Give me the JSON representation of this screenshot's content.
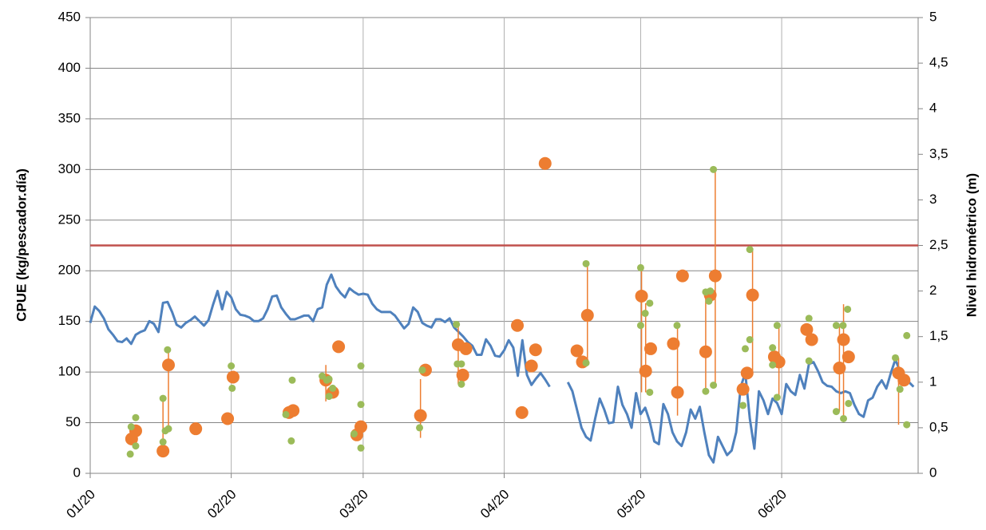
{
  "chart_data": {
    "type": "combo",
    "y_label": "CPUE (kg/pescador.día)",
    "y2_label": "Nivel hidrométrico (m)",
    "xlim": [
      0,
      182
    ],
    "xticks": [
      {
        "value": 0,
        "label": "01/20"
      },
      {
        "value": 31,
        "label": "02/20"
      },
      {
        "value": 60,
        "label": "03/20"
      },
      {
        "value": 91,
        "label": "04/20"
      },
      {
        "value": 121,
        "label": "05/20"
      },
      {
        "value": 152,
        "label": "06/20"
      }
    ],
    "ylim": [
      0,
      450
    ],
    "yticks": [
      0,
      50,
      100,
      150,
      200,
      250,
      300,
      350,
      400,
      450
    ],
    "y2lim": [
      0,
      5
    ],
    "y2ticks": [
      0,
      {
        "value": 0.5,
        "label": "0,5"
      },
      1,
      {
        "value": 1.5,
        "label": "1,5"
      },
      2,
      {
        "value": 2.5,
        "label": "2,5"
      },
      3,
      {
        "value": 3.5,
        "label": "3,5"
      },
      4,
      {
        "value": 4.5,
        "label": "4,5"
      },
      5
    ],
    "grid": true,
    "reference_line": {
      "axis": "y2",
      "value": 2.5,
      "color": "#c0504d"
    },
    "series": [
      {
        "type": "line",
        "axis": "y2",
        "color": "#4f81bd",
        "x": [
          0,
          1,
          2,
          3,
          4,
          5,
          6,
          7,
          8,
          9,
          10,
          11,
          12,
          13,
          14,
          15,
          16,
          17,
          18,
          19,
          20,
          21,
          22,
          23,
          24,
          25,
          26,
          27,
          28,
          29,
          30,
          31,
          32,
          33,
          34,
          35,
          36,
          37,
          38,
          39,
          40,
          41,
          42,
          43,
          44,
          45,
          46,
          47,
          48,
          49,
          50,
          51,
          52,
          53,
          54,
          55,
          56,
          57,
          58,
          59,
          60,
          61,
          62,
          63,
          64,
          65,
          66,
          67,
          68,
          69,
          70,
          71,
          72,
          73,
          74,
          75,
          76,
          77,
          78,
          79,
          80,
          81,
          82,
          83,
          84,
          85,
          86,
          87,
          88,
          89,
          90,
          91,
          92,
          93,
          94,
          95,
          96,
          97,
          98,
          99,
          100,
          101,
          102,
          103,
          104,
          105,
          106,
          107,
          108,
          109,
          110,
          111,
          112,
          113,
          114,
          115,
          116,
          117,
          118,
          119,
          120,
          121,
          122,
          123,
          124,
          125,
          126,
          127,
          128,
          129,
          130,
          131,
          132,
          133,
          134,
          135,
          136,
          137,
          138,
          139,
          140,
          141,
          142,
          143,
          144,
          145,
          146,
          147,
          148,
          149,
          150,
          151,
          152,
          153,
          154,
          155,
          156,
          157,
          158,
          159,
          160,
          161,
          162,
          163,
          164,
          165,
          166,
          167,
          168,
          169,
          170,
          171,
          172,
          173,
          174,
          175,
          176,
          177,
          178,
          179,
          180,
          181
        ],
        "values": [
          1.65,
          1.83,
          1.78,
          1.7,
          1.58,
          1.52,
          1.45,
          1.44,
          1.48,
          1.42,
          1.52,
          1.55,
          1.57,
          1.67,
          1.64,
          1.55,
          1.87,
          1.88,
          1.77,
          1.63,
          1.6,
          1.65,
          1.68,
          1.72,
          1.67,
          1.62,
          1.68,
          1.85,
          2.0,
          1.8,
          1.99,
          1.93,
          1.8,
          1.74,
          1.73,
          1.71,
          1.67,
          1.67,
          1.7,
          1.8,
          1.94,
          1.95,
          1.82,
          1.75,
          1.69,
          1.69,
          1.71,
          1.73,
          1.73,
          1.67,
          1.8,
          1.82,
          2.07,
          2.18,
          2.05,
          1.98,
          1.93,
          2.03,
          1.99,
          1.96,
          1.97,
          1.96,
          1.86,
          1.8,
          1.77,
          1.77,
          1.77,
          1.73,
          1.66,
          1.59,
          1.64,
          1.82,
          1.77,
          1.65,
          1.62,
          1.6,
          1.69,
          1.69,
          1.66,
          1.7,
          1.6,
          1.55,
          1.5,
          1.44,
          1.4,
          1.3,
          1.3,
          1.47,
          1.4,
          1.29,
          1.28,
          1.35,
          1.46,
          1.38,
          1.07,
          1.46,
          1.08,
          0.97,
          1.04,
          1.1,
          1.03,
          0.95,
          null,
          null,
          null,
          1.0,
          0.9,
          0.7,
          0.5,
          0.4,
          0.36,
          0.6,
          0.82,
          0.7,
          0.55,
          0.56,
          0.95,
          0.75,
          0.65,
          0.5,
          0.88,
          0.65,
          0.72,
          0.57,
          0.35,
          0.32,
          0.76,
          0.65,
          0.45,
          0.35,
          0.3,
          0.45,
          0.7,
          0.6,
          0.73,
          0.45,
          0.2,
          0.12,
          0.4,
          0.3,
          0.2,
          0.25,
          0.45,
          0.95,
          1.1,
          0.6,
          0.27,
          0.9,
          0.8,
          0.65,
          0.82,
          0.77,
          0.65,
          0.98,
          0.9,
          0.86,
          1.08,
          0.93,
          1.2,
          1.22,
          1.12,
          1.0,
          0.96,
          0.95,
          0.9,
          0.88,
          0.9,
          0.88,
          0.75,
          0.65,
          0.62,
          0.8,
          0.83,
          0.95,
          1.02,
          0.93,
          1.1,
          1.25,
          1.12,
          1.05,
          1.0,
          0.95
        ]
      },
      {
        "type": "scatter",
        "color": "#ed7d31",
        "x": [
          9.1,
          10,
          16,
          17.2,
          23.2,
          30.2,
          31.4,
          43.7,
          44.6,
          51.8,
          53.3,
          54.6,
          58.6,
          59.5,
          72.6,
          73.7,
          80.9,
          81.9,
          82.6,
          93.9,
          94.9,
          97,
          97.9,
          100,
          107,
          108.2,
          109.3,
          121.2,
          122.1,
          123.2,
          128.2,
          129.1,
          130.2,
          135.3,
          136.3,
          137.4,
          143.5,
          144.4,
          145.6,
          150.4,
          151.4,
          157.5,
          158.6,
          164.7,
          165.6,
          166.7,
          177.7,
          178.9
        ],
        "values": [
          34,
          42,
          22,
          107,
          44,
          54,
          95,
          60,
          62,
          92,
          80,
          125,
          38,
          46,
          57,
          102,
          127,
          97,
          123,
          146,
          60,
          106,
          122,
          306,
          121,
          110,
          156,
          175,
          101,
          123,
          128,
          80,
          195,
          120,
          176,
          195,
          83,
          99,
          176,
          115,
          110,
          142,
          132,
          104,
          132,
          115,
          99,
          92
        ],
        "low": [
          null,
          null,
          31,
          44,
          null,
          null,
          null,
          null,
          null,
          71,
          null,
          null,
          null,
          null,
          35,
          null,
          88,
          null,
          null,
          null,
          null,
          null,
          null,
          null,
          null,
          null,
          109,
          80,
          80,
          null,
          null,
          57,
          null,
          81,
          null,
          87,
          null,
          null,
          99,
          null,
          75,
          null,
          null,
          61,
          54,
          null,
          48,
          null
        ],
        "high": [
          null,
          null,
          74,
          122,
          null,
          null,
          null,
          null,
          null,
          107,
          null,
          null,
          null,
          null,
          93,
          null,
          147,
          null,
          null,
          null,
          null,
          null,
          null,
          null,
          null,
          null,
          207,
          203,
          168,
          null,
          null,
          146,
          null,
          179,
          null,
          300,
          null,
          null,
          221,
          null,
          146,
          null,
          null,
          146,
          167,
          null,
          114,
          null
        ]
      },
      {
        "type": "scatter",
        "color": "#9bbb59",
        "small": true,
        "x": [
          9,
          8.8,
          10,
          10,
          16,
          16,
          16.5,
          17,
          17.2,
          31,
          31.2,
          44.4,
          44.2,
          43,
          51,
          52,
          52.5,
          52.5,
          53.3,
          59.5,
          59.5,
          59.5,
          58,
          72.4,
          73,
          80.5,
          80.7,
          81.6,
          81.6,
          109,
          109,
          121,
          121,
          122,
          123,
          123,
          129,
          135.3,
          135.3,
          136,
          136.3,
          137,
          137,
          144,
          145,
          145,
          143.5,
          150,
          150,
          151,
          151,
          158,
          158,
          164,
          164,
          165.5,
          165.6,
          166.5,
          166.7,
          177,
          178,
          179.5,
          179.5
        ],
        "values": [
          46,
          19,
          55,
          27,
          74,
          31,
          42,
          122,
          44,
          106,
          84,
          92,
          32,
          58,
          96,
          92,
          76,
          93,
          84,
          106,
          68,
          25,
          39,
          45,
          102,
          147,
          108,
          108,
          88,
          207,
          109,
          203,
          146,
          158,
          168,
          80,
          146,
          179,
          81,
          170,
          180,
          300,
          87,
          123,
          132,
          221,
          67,
          124,
          107,
          146,
          75,
          153,
          111,
          146,
          61,
          146,
          54,
          162,
          69,
          114,
          83,
          136,
          48
        ]
      }
    ]
  }
}
